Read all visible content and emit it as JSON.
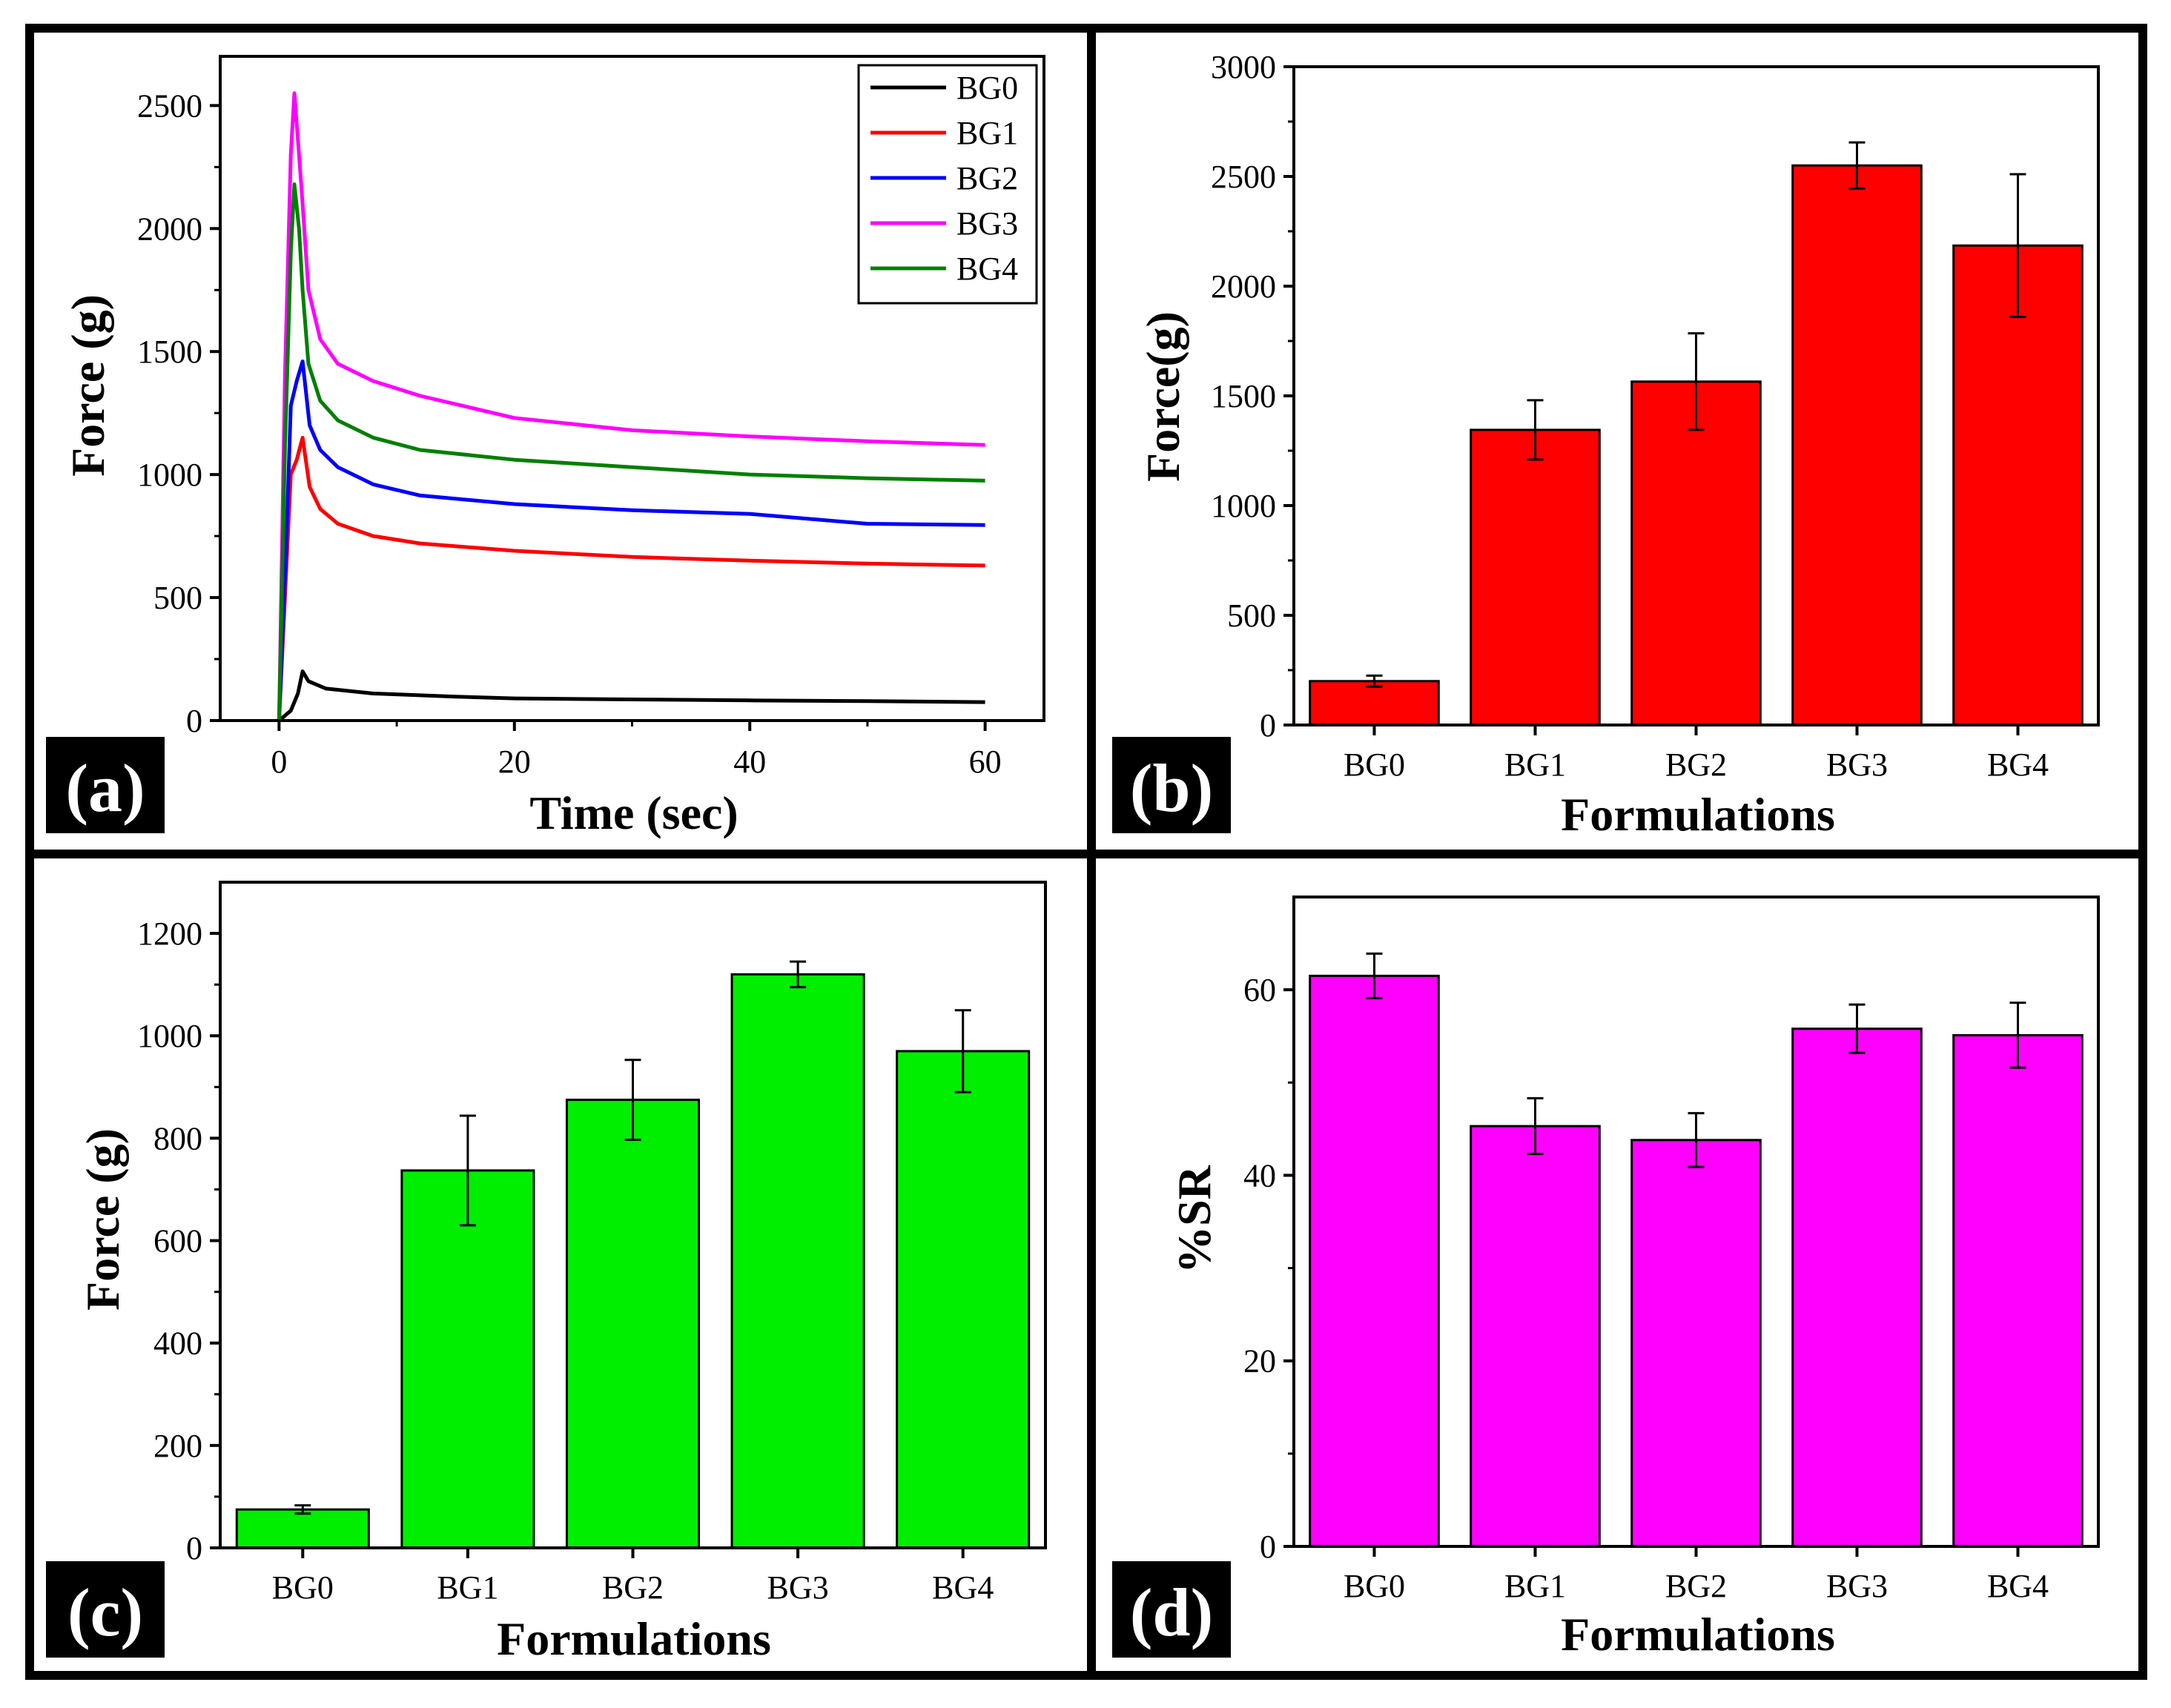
{
  "figure": {
    "panels": [
      "(a)",
      "(b)",
      "(c)",
      "(d)"
    ]
  },
  "colors": {
    "BG0": "#000000",
    "BG1": "#ff0000",
    "BG2": "#0000ff",
    "BG3": "#ff00ff",
    "BG4": "#008000",
    "bar_b": "#ff0000",
    "bar_c": "#00ee00",
    "bar_d": "#ff00ff"
  },
  "chart_data": [
    {
      "panel": "(a)",
      "type": "line",
      "title": "",
      "xlabel": "Time (sec)",
      "ylabel": "Force (g)",
      "xlim": [
        -5,
        65
      ],
      "ylim": [
        0,
        2700
      ],
      "xticks": [
        0,
        20,
        40,
        60
      ],
      "yticks": [
        0,
        500,
        1000,
        1500,
        2000,
        2500
      ],
      "legend_position": "top-right",
      "series": [
        {
          "name": "BG0",
          "color": "#000000",
          "points": [
            [
              0,
              0
            ],
            [
              1,
              40
            ],
            [
              1.6,
              110
            ],
            [
              2,
              200
            ],
            [
              2.5,
              160
            ],
            [
              4,
              130
            ],
            [
              8,
              110
            ],
            [
              15,
              97
            ],
            [
              20,
              90
            ],
            [
              30,
              86
            ],
            [
              40,
              82
            ],
            [
              50,
              79
            ],
            [
              60,
              75
            ]
          ]
        },
        {
          "name": "BG1",
          "color": "#ff0000",
          "points": [
            [
              0,
              0
            ],
            [
              0.6,
              600
            ],
            [
              1,
              1000
            ],
            [
              1.5,
              1060
            ],
            [
              2,
              1150
            ],
            [
              2.6,
              950
            ],
            [
              3.5,
              860
            ],
            [
              5,
              800
            ],
            [
              8,
              750
            ],
            [
              12,
              720
            ],
            [
              20,
              690
            ],
            [
              30,
              665
            ],
            [
              40,
              650
            ],
            [
              50,
              638
            ],
            [
              60,
              630
            ]
          ]
        },
        {
          "name": "BG2",
          "color": "#0000ff",
          "points": [
            [
              0,
              0
            ],
            [
              0.6,
              700
            ],
            [
              1,
              1280
            ],
            [
              1.5,
              1380
            ],
            [
              2,
              1460
            ],
            [
              2.6,
              1200
            ],
            [
              3.5,
              1100
            ],
            [
              5,
              1030
            ],
            [
              8,
              960
            ],
            [
              12,
              915
            ],
            [
              20,
              880
            ],
            [
              30,
              855
            ],
            [
              40,
              840
            ],
            [
              45,
              820
            ],
            [
              50,
              800
            ],
            [
              60,
              795
            ]
          ]
        },
        {
          "name": "BG3",
          "color": "#ff00ff",
          "points": [
            [
              0,
              0
            ],
            [
              0.5,
              1400
            ],
            [
              1,
              2300
            ],
            [
              1.3,
              2550
            ],
            [
              1.7,
              2300
            ],
            [
              2,
              2100
            ],
            [
              2.5,
              1750
            ],
            [
              3.5,
              1550
            ],
            [
              5,
              1450
            ],
            [
              8,
              1380
            ],
            [
              12,
              1320
            ],
            [
              20,
              1230
            ],
            [
              30,
              1180
            ],
            [
              40,
              1155
            ],
            [
              50,
              1135
            ],
            [
              60,
              1120
            ]
          ]
        },
        {
          "name": "BG4",
          "color": "#008000",
          "points": [
            [
              0,
              0
            ],
            [
              0.5,
              1100
            ],
            [
              1,
              1900
            ],
            [
              1.3,
              2180
            ],
            [
              1.7,
              2000
            ],
            [
              2,
              1750
            ],
            [
              2.5,
              1450
            ],
            [
              3.5,
              1300
            ],
            [
              5,
              1220
            ],
            [
              8,
              1150
            ],
            [
              12,
              1100
            ],
            [
              20,
              1060
            ],
            [
              30,
              1030
            ],
            [
              40,
              1000
            ],
            [
              50,
              985
            ],
            [
              60,
              975
            ]
          ]
        }
      ]
    },
    {
      "panel": "(b)",
      "type": "bar",
      "title": "",
      "xlabel": "Formulations",
      "ylabel": "Force(g)",
      "ylim": [
        0,
        3000
      ],
      "yticks": [
        0,
        500,
        1000,
        1500,
        2000,
        2500,
        3000
      ],
      "categories": [
        "BG0",
        "BG1",
        "BG2",
        "BG3",
        "BG4"
      ],
      "values": [
        200,
        1345,
        1565,
        2550,
        2185
      ],
      "errors": [
        25,
        135,
        220,
        105,
        325
      ],
      "color": "#ff0000"
    },
    {
      "panel": "(c)",
      "type": "bar",
      "title": "",
      "xlabel": "Formulations",
      "ylabel": "Force (g)",
      "ylim": [
        0,
        1300
      ],
      "yticks": [
        0,
        200,
        400,
        600,
        800,
        1000,
        1200
      ],
      "categories": [
        "BG0",
        "BG1",
        "BG2",
        "BG3",
        "BG4"
      ],
      "values": [
        75,
        737,
        875,
        1120,
        970
      ],
      "errors": [
        8,
        107,
        78,
        25,
        80
      ],
      "color": "#00ee00"
    },
    {
      "panel": "(d)",
      "type": "bar",
      "title": "",
      "xlabel": "Formulations",
      "ylabel": "%SR",
      "ylim": [
        0,
        70
      ],
      "yticks": [
        0,
        20,
        40,
        60
      ],
      "categories": [
        "BG0",
        "BG1",
        "BG2",
        "BG3",
        "BG4"
      ],
      "values": [
        61.5,
        45.3,
        43.8,
        55.8,
        55.1
      ],
      "errors": [
        2.4,
        3.0,
        2.9,
        2.6,
        3.5
      ],
      "color": "#ff00ff"
    }
  ]
}
